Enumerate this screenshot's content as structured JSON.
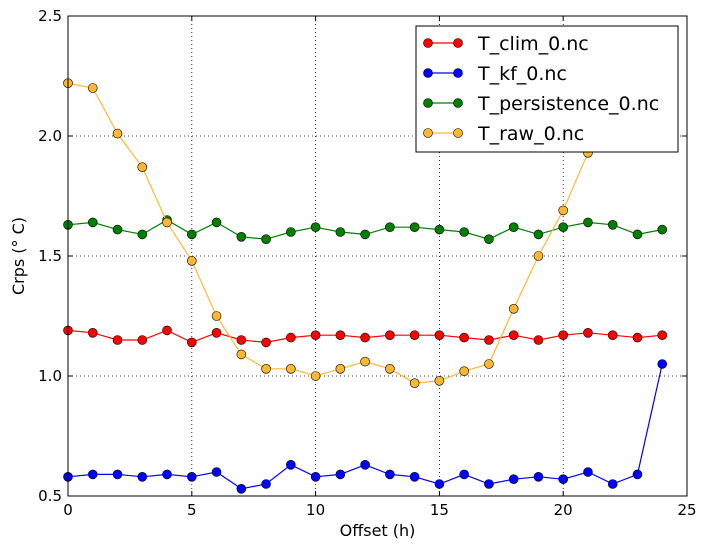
{
  "chart_data": {
    "type": "line",
    "title": "",
    "xlabel": "Offset (h)",
    "ylabel": "Crps (° C)",
    "xlim": [
      0,
      25
    ],
    "ylim": [
      0.5,
      2.5
    ],
    "x_ticks": [
      0,
      5,
      10,
      15,
      20,
      25
    ],
    "y_ticks": [
      0.5,
      1.0,
      1.5,
      2.0,
      2.5
    ],
    "x_tick_labels": [
      "0",
      "5",
      "10",
      "15",
      "20",
      "25"
    ],
    "y_tick_labels": [
      "0.5",
      "1.0",
      "1.5",
      "2.0",
      "2.5"
    ],
    "grid": true,
    "legend_position": "top-right",
    "x": [
      0,
      1,
      2,
      3,
      4,
      5,
      6,
      7,
      8,
      9,
      10,
      11,
      12,
      13,
      14,
      15,
      16,
      17,
      18,
      19,
      20,
      21,
      22,
      23,
      24
    ],
    "series": [
      {
        "name": "T_clim_0.nc",
        "color": "#ff0000",
        "values": [
          1.19,
          1.18,
          1.15,
          1.15,
          1.19,
          1.14,
          1.18,
          1.15,
          1.14,
          1.16,
          1.17,
          1.17,
          1.16,
          1.17,
          1.17,
          1.17,
          1.16,
          1.15,
          1.17,
          1.15,
          1.17,
          1.18,
          1.17,
          1.16,
          1.17
        ]
      },
      {
        "name": "T_kf_0.nc",
        "color": "#0000ff",
        "values": [
          0.58,
          0.59,
          0.59,
          0.58,
          0.59,
          0.58,
          0.6,
          0.53,
          0.55,
          0.63,
          0.58,
          0.59,
          0.63,
          0.59,
          0.58,
          0.55,
          0.59,
          0.55,
          0.57,
          0.58,
          0.57,
          0.6,
          0.55,
          0.59,
          1.05
        ]
      },
      {
        "name": "T_persistence_0.nc",
        "color": "#008000",
        "values": [
          1.63,
          1.64,
          1.61,
          1.59,
          1.65,
          1.59,
          1.64,
          1.58,
          1.57,
          1.6,
          1.62,
          1.6,
          1.59,
          1.62,
          1.62,
          1.61,
          1.6,
          1.57,
          1.62,
          1.59,
          1.62,
          1.64,
          1.63,
          1.59,
          1.61
        ]
      },
      {
        "name": "T_raw_0.nc",
        "color": "#ffb732",
        "values": [
          2.22,
          2.2,
          2.01,
          1.87,
          1.64,
          1.48,
          1.25,
          1.09,
          1.03,
          1.03,
          1.0,
          1.03,
          1.06,
          1.03,
          0.97,
          0.98,
          1.02,
          1.05,
          1.28,
          1.5,
          1.69,
          1.93,
          null,
          null,
          null
        ]
      }
    ]
  }
}
